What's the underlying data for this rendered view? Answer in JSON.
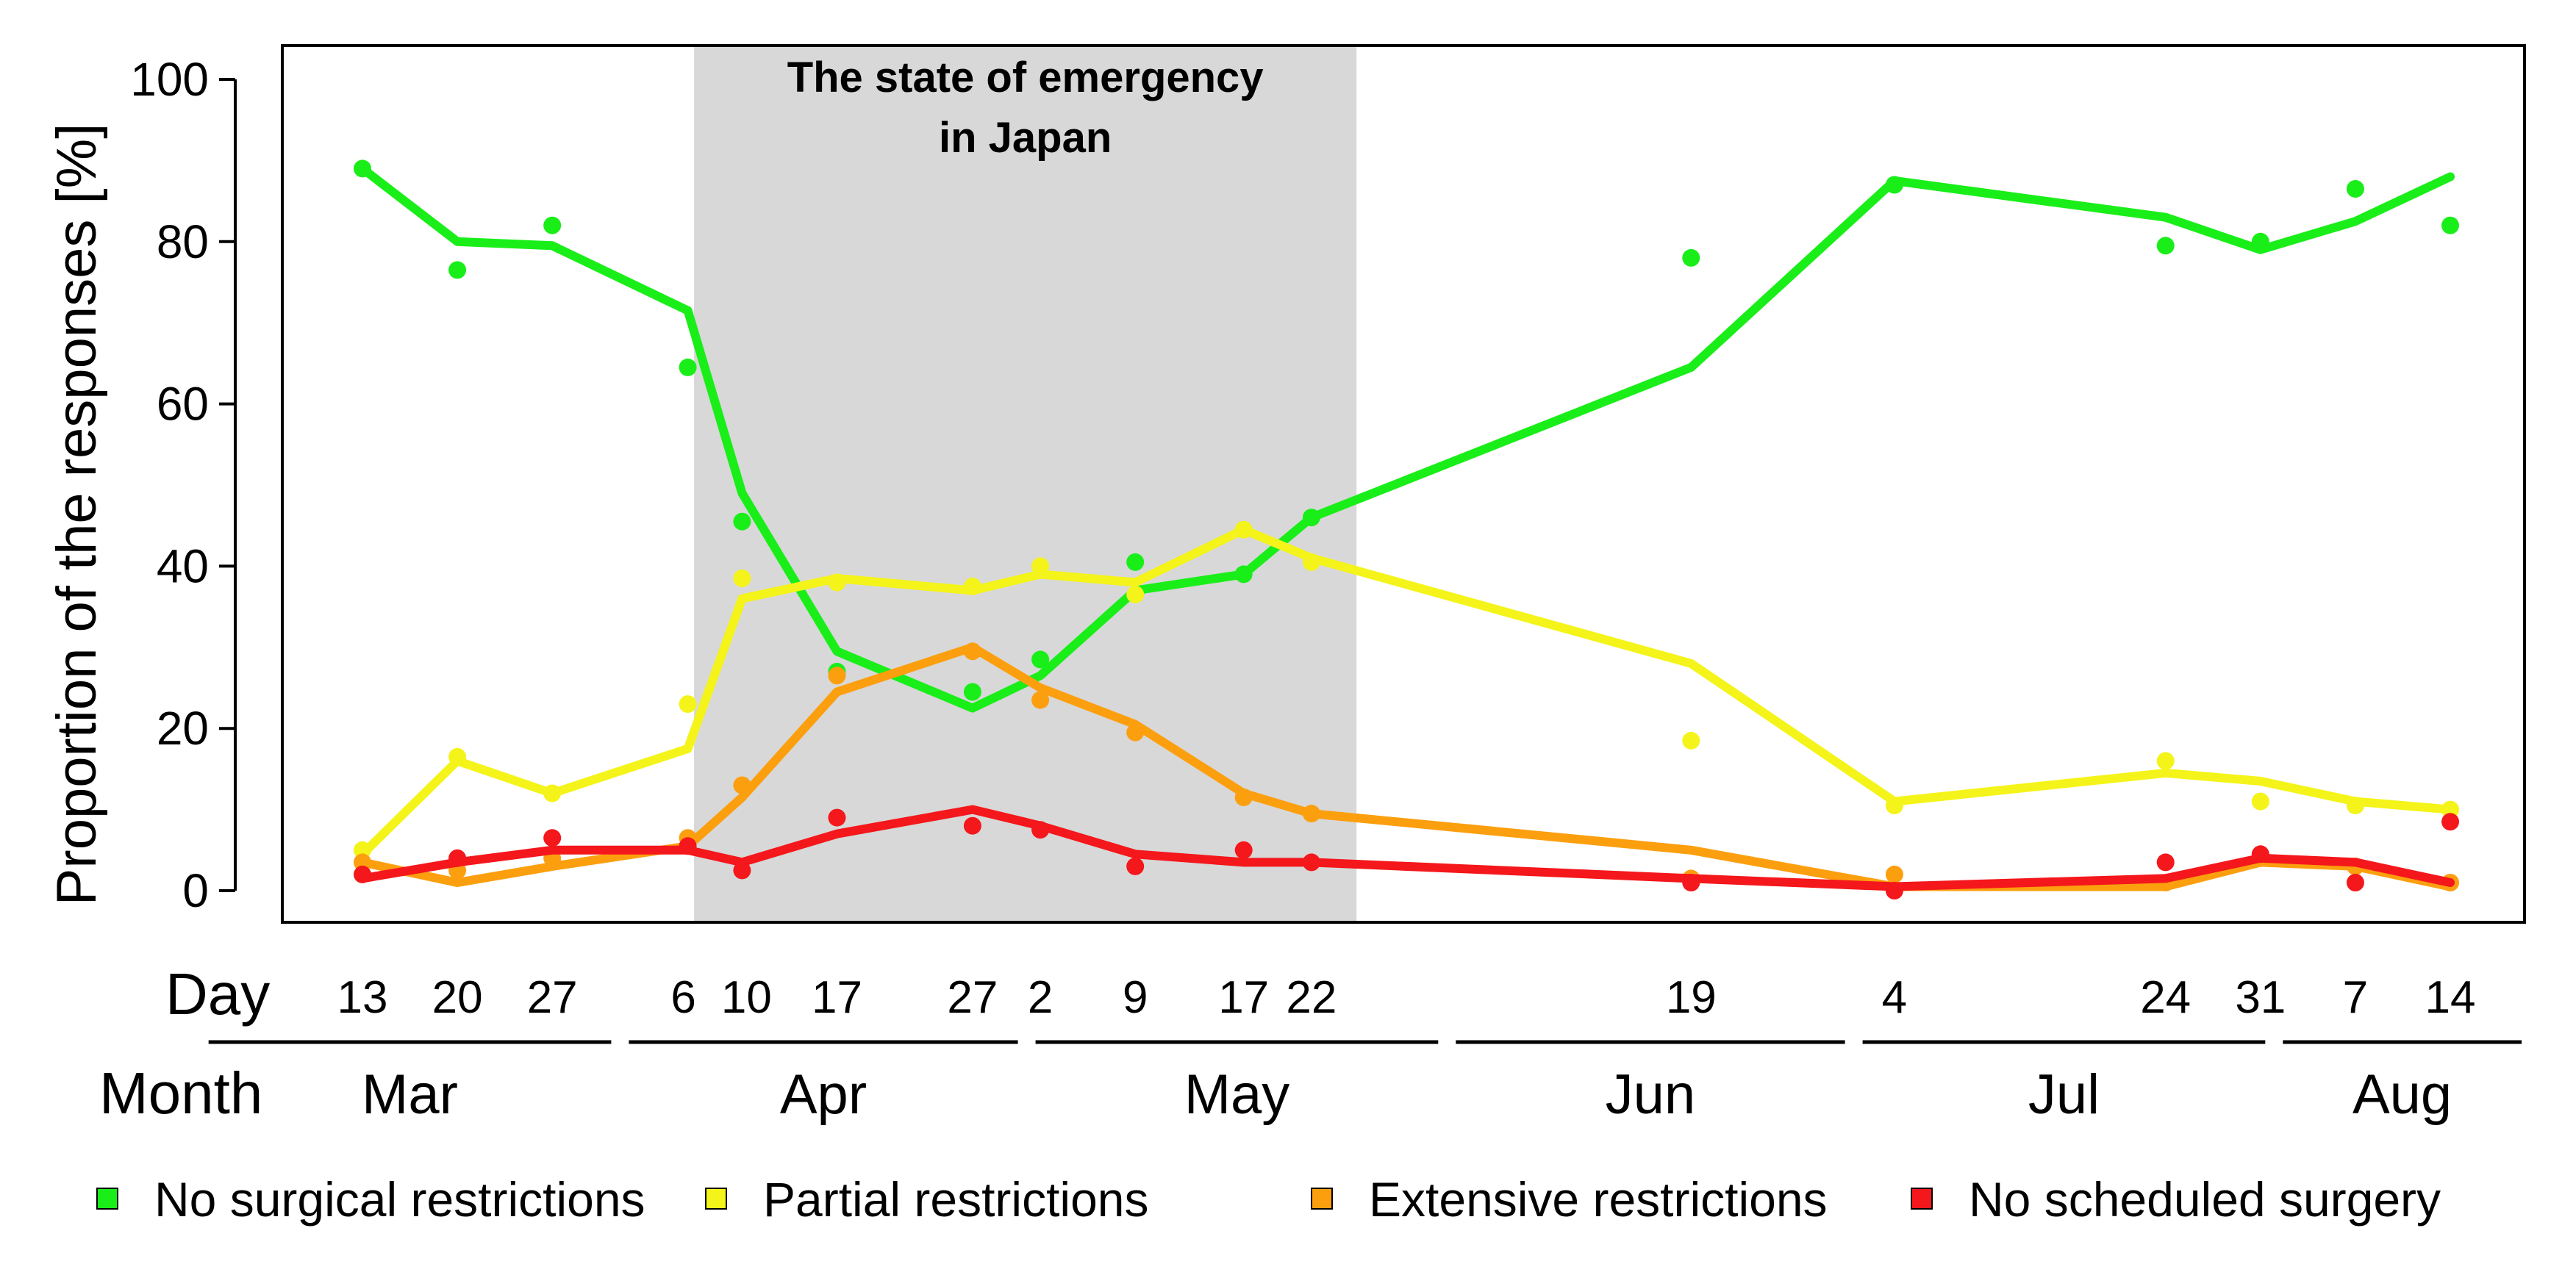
{
  "chart_data": {
    "type": "line",
    "ylabel": "Proportion of the responses [%]",
    "ylim": [
      0,
      100
    ],
    "yticks": [
      0,
      20,
      40,
      60,
      80,
      100
    ],
    "shaded_region": {
      "label_line1": "The state of emergency",
      "label_line2": "in Japan",
      "from": "Apr 7",
      "to": "May 25"
    },
    "day_row_label": "Day",
    "month_row_label": "Month",
    "x": [
      {
        "day": "13",
        "month": "Mar"
      },
      {
        "day": "20",
        "month": "Mar"
      },
      {
        "day": "27",
        "month": "Mar"
      },
      {
        "day": "6",
        "month": "Apr"
      },
      {
        "day": "10",
        "month": "Apr"
      },
      {
        "day": "17",
        "month": "Apr"
      },
      {
        "day": "27",
        "month": "Apr"
      },
      {
        "day": "2",
        "month": "May"
      },
      {
        "day": "9",
        "month": "May"
      },
      {
        "day": "17",
        "month": "May"
      },
      {
        "day": "22",
        "month": "May"
      },
      {
        "day": "19",
        "month": "Jun"
      },
      {
        "day": "4",
        "month": "Jul"
      },
      {
        "day": "24",
        "month": "Jul"
      },
      {
        "day": "31",
        "month": "Jul"
      },
      {
        "day": "7",
        "month": "Aug"
      },
      {
        "day": "14",
        "month": "Aug"
      }
    ],
    "months": [
      "Mar",
      "Apr",
      "May",
      "Jun",
      "Jul",
      "Aug"
    ],
    "series": [
      {
        "name": "No surgical restrictions",
        "color": "#19ee19",
        "points": [
          89,
          76.5,
          82,
          64.5,
          45.5,
          27,
          24.5,
          28.5,
          40.5,
          39,
          46,
          78,
          87,
          79.5,
          80,
          86.5,
          82
        ],
        "smooth": [
          89,
          80,
          79.5,
          71.5,
          49,
          29.5,
          22.5,
          26.5,
          37,
          39,
          46,
          64.5,
          87.5,
          83,
          79,
          82.5,
          88
        ]
      },
      {
        "name": "Partial restrictions",
        "color": "#f4f41a",
        "points": [
          5,
          16.5,
          12,
          23,
          38.5,
          38,
          37.5,
          40,
          36.5,
          44.5,
          40.5,
          18.5,
          10.5,
          16,
          11,
          10.5,
          10
        ],
        "smooth": [
          4.5,
          16,
          12,
          17.5,
          36,
          38.5,
          37,
          39,
          38,
          44.5,
          41,
          28,
          11,
          14.5,
          13.5,
          11,
          10
        ]
      },
      {
        "name": "Extensive restrictions",
        "color": "#fc9f0f",
        "points": [
          3.5,
          2.5,
          4,
          6.5,
          13,
          26.5,
          29.5,
          23.5,
          19.5,
          11.5,
          9.5,
          1.5,
          2,
          1,
          4,
          3,
          1
        ],
        "smooth": [
          3.5,
          1,
          3,
          5.5,
          11.5,
          24.5,
          30,
          25,
          20.5,
          12,
          9.5,
          5,
          0.5,
          0.5,
          3.5,
          3,
          0.5
        ]
      },
      {
        "name": "No scheduled surgery",
        "color": "#f4171b",
        "points": [
          2,
          4,
          6.5,
          5.5,
          2.5,
          9,
          8,
          7.5,
          3,
          5,
          3.5,
          1,
          0,
          3.5,
          4.5,
          1,
          8.5
        ],
        "smooth": [
          1.5,
          3.5,
          5,
          5,
          3.5,
          7,
          10,
          8,
          4.5,
          3.5,
          3.5,
          1.5,
          0.5,
          1.5,
          4,
          3.5,
          1
        ]
      }
    ]
  }
}
